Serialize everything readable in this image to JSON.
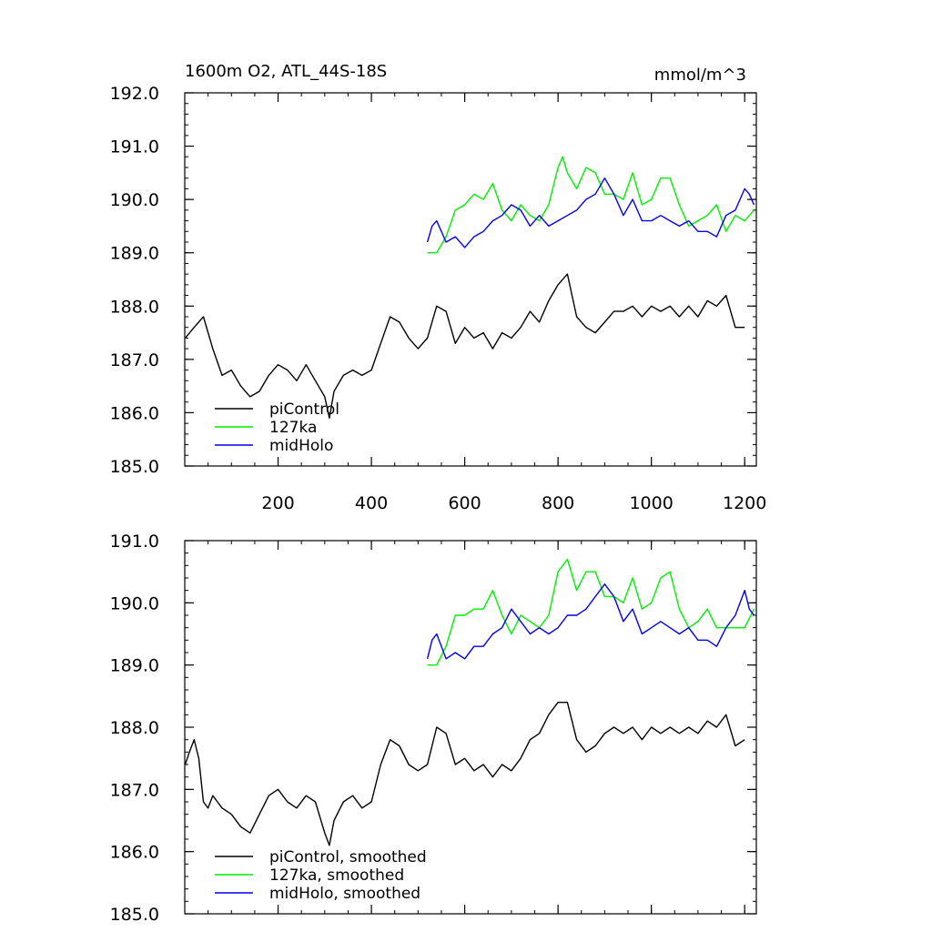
{
  "header": {
    "title": "1600m O2, ATL_44S-18S",
    "units": "mmol/m^3"
  },
  "colors": {
    "piControl": "#000000",
    "127ka": "#00ee00",
    "midHolo": "#0000ee"
  },
  "chart_data": [
    {
      "type": "line",
      "title": "1600m O2, ATL_44S-18S",
      "units": "mmol/m^3",
      "xlim": [
        0,
        1225
      ],
      "ylim": [
        185.0,
        192.0
      ],
      "x_ticks": [
        200,
        400,
        600,
        800,
        1000,
        1200
      ],
      "y_ticks": [
        185.0,
        186.0,
        187.0,
        188.0,
        189.0,
        190.0,
        191.0,
        192.0
      ],
      "y_tick_labels": [
        "185.0",
        "186.0",
        "187.0",
        "188.0",
        "189.0",
        "190.0",
        "191.0",
        "192.0"
      ],
      "grid": false,
      "legend": "bottom-left",
      "series": [
        {
          "name": "piControl",
          "color": "#000000",
          "x": [
            1,
            20,
            40,
            60,
            80,
            100,
            120,
            140,
            160,
            180,
            200,
            220,
            240,
            260,
            280,
            300,
            310,
            320,
            340,
            360,
            380,
            400,
            420,
            440,
            460,
            480,
            500,
            520,
            540,
            560,
            580,
            600,
            620,
            640,
            660,
            680,
            700,
            720,
            740,
            760,
            780,
            800,
            820,
            830,
            840,
            860,
            880,
            900,
            920,
            940,
            960,
            980,
            1000,
            1020,
            1040,
            1060,
            1080,
            1100,
            1120,
            1140,
            1160,
            1180,
            1200
          ],
          "values": [
            187.4,
            187.6,
            187.8,
            187.2,
            186.7,
            186.8,
            186.5,
            186.3,
            186.4,
            186.7,
            186.9,
            186.8,
            186.6,
            186.9,
            186.6,
            186.3,
            185.9,
            186.4,
            186.7,
            186.8,
            186.7,
            186.8,
            187.3,
            187.8,
            187.7,
            187.4,
            187.2,
            187.4,
            188.0,
            187.9,
            187.3,
            187.6,
            187.4,
            187.5,
            187.2,
            187.5,
            187.4,
            187.6,
            187.9,
            187.7,
            188.1,
            188.4,
            188.6,
            188.2,
            187.8,
            187.6,
            187.5,
            187.7,
            187.9,
            187.9,
            188.0,
            187.8,
            188.0,
            187.9,
            188.0,
            187.8,
            188.0,
            187.8,
            188.1,
            188.0,
            188.2,
            187.6,
            187.6
          ]
        },
        {
          "name": "127ka",
          "color": "#00ee00",
          "x": [
            520,
            540,
            560,
            580,
            600,
            620,
            640,
            660,
            680,
            700,
            720,
            740,
            760,
            780,
            800,
            810,
            820,
            840,
            860,
            880,
            900,
            920,
            940,
            960,
            980,
            1000,
            1020,
            1040,
            1060,
            1080,
            1100,
            1120,
            1140,
            1160,
            1180,
            1200,
            1220
          ],
          "values": [
            189.0,
            189.0,
            189.3,
            189.8,
            189.9,
            190.1,
            190.0,
            190.3,
            189.8,
            189.6,
            189.9,
            189.7,
            189.6,
            189.9,
            190.6,
            190.8,
            190.5,
            190.2,
            190.6,
            190.5,
            190.1,
            190.1,
            190.0,
            190.5,
            189.9,
            190.0,
            190.4,
            190.4,
            189.9,
            189.5,
            189.6,
            189.7,
            189.9,
            189.4,
            189.7,
            189.6,
            189.8
          ]
        },
        {
          "name": "midHolo",
          "color": "#0000ee",
          "x": [
            520,
            530,
            540,
            560,
            580,
            600,
            620,
            640,
            660,
            680,
            700,
            720,
            740,
            760,
            780,
            800,
            820,
            840,
            860,
            880,
            900,
            920,
            940,
            960,
            980,
            1000,
            1020,
            1040,
            1060,
            1080,
            1100,
            1120,
            1140,
            1160,
            1180,
            1200,
            1210,
            1220
          ],
          "values": [
            189.2,
            189.5,
            189.6,
            189.2,
            189.3,
            189.1,
            189.3,
            189.4,
            189.6,
            189.7,
            189.9,
            189.8,
            189.5,
            189.7,
            189.5,
            189.6,
            189.7,
            189.8,
            190.0,
            190.1,
            190.4,
            190.1,
            189.7,
            190.0,
            189.6,
            189.6,
            189.7,
            189.6,
            189.5,
            189.6,
            189.4,
            189.4,
            189.3,
            189.7,
            189.8,
            190.2,
            190.1,
            189.9
          ]
        }
      ],
      "legend_labels": [
        "piControl",
        "127ka",
        "midHolo"
      ]
    },
    {
      "type": "line",
      "xlim": [
        0,
        1225
      ],
      "ylim": [
        185.0,
        191.0
      ],
      "x_ticks": [
        200,
        400,
        600,
        800,
        1000,
        1200
      ],
      "y_ticks": [
        185.0,
        186.0,
        187.0,
        188.0,
        189.0,
        190.0,
        191.0
      ],
      "y_tick_labels": [
        "185.0",
        "186.0",
        "187.0",
        "188.0",
        "189.0",
        "190.0",
        "191.0"
      ],
      "grid": false,
      "legend": "bottom-left",
      "series": [
        {
          "name": "piControl, smoothed",
          "color": "#000000",
          "x": [
            1,
            10,
            20,
            30,
            40,
            50,
            60,
            70,
            80,
            100,
            120,
            140,
            160,
            180,
            200,
            220,
            240,
            260,
            280,
            300,
            310,
            320,
            340,
            360,
            380,
            400,
            420,
            440,
            460,
            480,
            500,
            520,
            540,
            560,
            580,
            600,
            620,
            640,
            660,
            680,
            700,
            720,
            740,
            760,
            780,
            800,
            820,
            840,
            860,
            880,
            900,
            920,
            940,
            960,
            980,
            1000,
            1020,
            1040,
            1060,
            1080,
            1100,
            1120,
            1140,
            1160,
            1180,
            1200
          ],
          "values": [
            187.4,
            187.6,
            187.8,
            187.5,
            186.8,
            186.7,
            186.9,
            186.8,
            186.7,
            186.6,
            186.4,
            186.3,
            186.6,
            186.9,
            187.0,
            186.8,
            186.7,
            186.9,
            186.8,
            186.3,
            186.1,
            186.5,
            186.8,
            186.9,
            186.7,
            186.8,
            187.4,
            187.8,
            187.7,
            187.4,
            187.3,
            187.4,
            188.0,
            187.9,
            187.4,
            187.5,
            187.3,
            187.4,
            187.2,
            187.4,
            187.3,
            187.5,
            187.8,
            187.9,
            188.2,
            188.4,
            188.4,
            187.8,
            187.6,
            187.7,
            187.9,
            188.0,
            187.9,
            188.0,
            187.8,
            188.0,
            187.9,
            188.0,
            187.9,
            188.0,
            187.9,
            188.1,
            188.0,
            188.2,
            187.7,
            187.8
          ]
        },
        {
          "name": "127ka, smoothed",
          "color": "#00ee00",
          "x": [
            520,
            540,
            560,
            580,
            600,
            620,
            640,
            660,
            680,
            700,
            720,
            740,
            760,
            780,
            800,
            820,
            840,
            860,
            880,
            900,
            920,
            940,
            960,
            980,
            1000,
            1020,
            1040,
            1060,
            1080,
            1100,
            1120,
            1140,
            1160,
            1180,
            1200,
            1220
          ],
          "values": [
            189.0,
            189.0,
            189.3,
            189.8,
            189.8,
            189.9,
            189.9,
            190.2,
            189.8,
            189.5,
            189.8,
            189.7,
            189.6,
            189.8,
            190.5,
            190.7,
            190.2,
            190.5,
            190.5,
            190.1,
            190.1,
            190.0,
            190.4,
            189.9,
            190.0,
            190.4,
            190.5,
            189.9,
            189.6,
            189.7,
            189.9,
            189.6,
            189.6,
            189.6,
            189.6,
            189.9
          ]
        },
        {
          "name": "midHolo, smoothed",
          "color": "#0000ee",
          "x": [
            520,
            530,
            540,
            560,
            580,
            600,
            620,
            640,
            660,
            680,
            700,
            720,
            740,
            760,
            780,
            800,
            820,
            840,
            860,
            880,
            900,
            920,
            940,
            960,
            980,
            1000,
            1020,
            1040,
            1060,
            1080,
            1100,
            1120,
            1140,
            1160,
            1180,
            1200,
            1210,
            1220
          ],
          "values": [
            189.1,
            189.4,
            189.5,
            189.1,
            189.2,
            189.1,
            189.3,
            189.3,
            189.5,
            189.6,
            189.9,
            189.7,
            189.5,
            189.6,
            189.5,
            189.6,
            189.8,
            189.8,
            189.9,
            190.1,
            190.3,
            190.1,
            189.7,
            189.9,
            189.5,
            189.6,
            189.7,
            189.6,
            189.5,
            189.6,
            189.4,
            189.4,
            189.3,
            189.6,
            189.8,
            190.2,
            189.9,
            189.8
          ]
        }
      ],
      "legend_labels": [
        "piControl, smoothed",
        "127ka, smoothed",
        "midHolo, smoothed"
      ]
    }
  ]
}
